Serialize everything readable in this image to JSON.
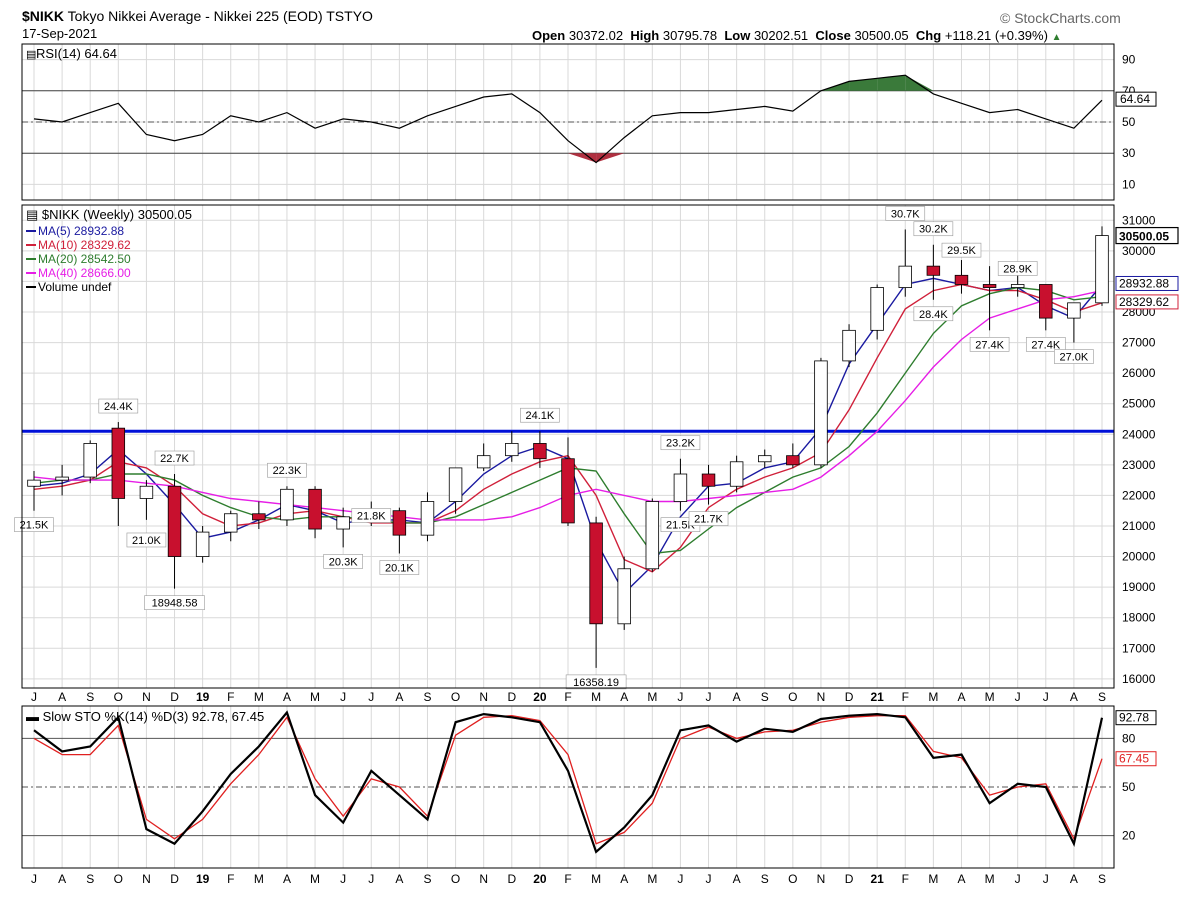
{
  "header": {
    "symbol": "$NIKK",
    "name": "Tokyo Nikkei Average - Nikkei 225 (EOD)",
    "exchange": "TSTYO",
    "date": "17-Sep-2021",
    "brand": "© StockCharts.com",
    "open_label": "Open",
    "open": "30372.02",
    "high_label": "High",
    "high": "30795.78",
    "low_label": "Low",
    "low": "30202.51",
    "close_label": "Close",
    "close": "30500.05",
    "chg_label": "Chg",
    "chg": "+118.21 (+0.39%)"
  },
  "colors": {
    "up": "#ffffff",
    "down": "#c8102e",
    "outline": "#000000",
    "ma5": "#1a1aa0",
    "ma10": "#d0203a",
    "ma20": "#2e7d2e",
    "ma40": "#e61ee6",
    "support": "#0010d8",
    "rsi_fill_up": "#3a7a3a",
    "rsi_fill_down": "#b03040",
    "sto_k": "#000000",
    "sto_d": "#e02020",
    "grid": "#d9d9d9"
  },
  "chart_data": [
    {
      "type": "line",
      "panel": "rsi",
      "title": "RSI(14) 64.64",
      "current": "64.64",
      "ylim": [
        0,
        100
      ],
      "yticks": [
        "90",
        "70",
        "50",
        "30",
        "10"
      ],
      "reference_lines": [
        70,
        50,
        30
      ],
      "x": [
        "2018-07",
        "2018-08",
        "2018-09",
        "2018-10",
        "2018-11",
        "2018-12",
        "2019-01",
        "2019-02",
        "2019-03",
        "2019-04",
        "2019-05",
        "2019-06",
        "2019-07",
        "2019-08",
        "2019-09",
        "2019-10",
        "2019-11",
        "2019-12",
        "2020-01",
        "2020-02",
        "2020-03",
        "2020-04",
        "2020-05",
        "2020-06",
        "2020-07",
        "2020-08",
        "2020-09",
        "2020-10",
        "2020-11",
        "2020-12",
        "2021-01",
        "2021-02",
        "2021-03",
        "2021-04",
        "2021-05",
        "2021-06",
        "2021-07",
        "2021-08",
        "2021-09"
      ],
      "series": [
        {
          "name": "RSI(14)",
          "values": [
            52,
            50,
            56,
            62,
            42,
            38,
            42,
            54,
            50,
            56,
            46,
            52,
            50,
            46,
            54,
            60,
            66,
            68,
            56,
            38,
            24,
            40,
            54,
            56,
            56,
            58,
            60,
            57,
            70,
            76,
            78,
            80,
            68,
            62,
            56,
            58,
            52,
            46,
            64
          ]
        }
      ]
    },
    {
      "type": "candlestick",
      "panel": "price",
      "title": "$NIKK (Weekly) 30500.05",
      "ylim": [
        15700,
        31500
      ],
      "yticks": [
        "31000",
        "30000",
        "29000",
        "28000",
        "27000",
        "26000",
        "25000",
        "24000",
        "23000",
        "22000",
        "21000",
        "20000",
        "19000",
        "18000",
        "17000",
        "16000"
      ],
      "xlabels": [
        "J",
        "A",
        "S",
        "O",
        "N",
        "D",
        "19",
        "F",
        "M",
        "A",
        "M",
        "J",
        "J",
        "A",
        "S",
        "O",
        "N",
        "D",
        "20",
        "F",
        "M",
        "A",
        "M",
        "J",
        "J",
        "A",
        "S",
        "O",
        "N",
        "D",
        "21",
        "F",
        "M",
        "A",
        "M",
        "J",
        "J",
        "A",
        "S"
      ],
      "last_price_label": "30500.05",
      "horizontal_line": 24100,
      "legend": [
        {
          "label": "MA(5) 28932.88",
          "color_key": "ma5"
        },
        {
          "label": "MA(10) 28329.62",
          "color_key": "ma10"
        },
        {
          "label": "MA(20) 28542.50",
          "color_key": "ma20"
        },
        {
          "label": "MA(40) 28666.00",
          "color_key": "ma40"
        },
        {
          "label": "Volume undef",
          "color_key": "outline"
        }
      ],
      "right_labels": [
        "28932.88",
        "28329.62"
      ],
      "annotations": [
        {
          "text": "21.5K",
          "x": "2018-07",
          "y": 21500
        },
        {
          "text": "24.4K",
          "x": "2018-10",
          "y": 24400
        },
        {
          "text": "21.0K",
          "x": "2018-11",
          "y": 21000
        },
        {
          "text": "22.7K",
          "x": "2018-12",
          "y": 22700
        },
        {
          "text": "18948.58",
          "x": "2018-12",
          "y": 18948.58
        },
        {
          "text": "22.3K",
          "x": "2019-04",
          "y": 22300
        },
        {
          "text": "20.3K",
          "x": "2019-06",
          "y": 20300
        },
        {
          "text": "21.8K",
          "x": "2019-07",
          "y": 21800
        },
        {
          "text": "20.1K",
          "x": "2019-08",
          "y": 20100
        },
        {
          "text": "24.1K",
          "x": "2020-01",
          "y": 24100
        },
        {
          "text": "16358.19",
          "x": "2020-03",
          "y": 16358.19
        },
        {
          "text": "23.2K",
          "x": "2020-06",
          "y": 23200
        },
        {
          "text": "21.5K",
          "x": "2020-06",
          "y": 21500
        },
        {
          "text": "21.7K",
          "x": "2020-07",
          "y": 21700
        },
        {
          "text": "30.7K",
          "x": "2021-02",
          "y": 30700
        },
        {
          "text": "30.2K",
          "x": "2021-03",
          "y": 30200
        },
        {
          "text": "28.4K",
          "x": "2021-03",
          "y": 28400
        },
        {
          "text": "29.5K",
          "x": "2021-04",
          "y": 29500
        },
        {
          "text": "27.4K",
          "x": "2021-05",
          "y": 27400
        },
        {
          "text": "28.9K",
          "x": "2021-06",
          "y": 28900
        },
        {
          "text": "27.4K",
          "x": "2021-07",
          "y": 27400
        },
        {
          "text": "27.0K",
          "x": "2021-08",
          "y": 27000
        }
      ],
      "x": [
        "2018-07",
        "2018-08",
        "2018-09",
        "2018-10",
        "2018-11",
        "2018-12",
        "2019-01",
        "2019-02",
        "2019-03",
        "2019-04",
        "2019-05",
        "2019-06",
        "2019-07",
        "2019-08",
        "2019-09",
        "2019-10",
        "2019-11",
        "2019-12",
        "2020-01",
        "2020-02",
        "2020-03",
        "2020-04",
        "2020-05",
        "2020-06",
        "2020-07",
        "2020-08",
        "2020-09",
        "2020-10",
        "2020-11",
        "2020-12",
        "2021-01",
        "2021-02",
        "2021-03",
        "2021-04",
        "2021-05",
        "2021-06",
        "2021-07",
        "2021-08",
        "2021-09"
      ],
      "candles": [
        {
          "o": 22300,
          "h": 22800,
          "l": 21500,
          "c": 22500
        },
        {
          "o": 22500,
          "h": 23000,
          "l": 22000,
          "c": 22600
        },
        {
          "o": 22600,
          "h": 23800,
          "l": 22400,
          "c": 23700
        },
        {
          "o": 24200,
          "h": 24400,
          "l": 21000,
          "c": 21900
        },
        {
          "o": 21900,
          "h": 22500,
          "l": 21200,
          "c": 22300
        },
        {
          "o": 22300,
          "h": 22700,
          "l": 18950,
          "c": 20000
        },
        {
          "o": 20000,
          "h": 21000,
          "l": 19800,
          "c": 20800
        },
        {
          "o": 20800,
          "h": 21500,
          "l": 20500,
          "c": 21400
        },
        {
          "o": 21400,
          "h": 21800,
          "l": 20900,
          "c": 21200
        },
        {
          "o": 21200,
          "h": 22300,
          "l": 21000,
          "c": 22200
        },
        {
          "o": 22200,
          "h": 22300,
          "l": 20600,
          "c": 20900
        },
        {
          "o": 20900,
          "h": 21600,
          "l": 20300,
          "c": 21300
        },
        {
          "o": 21300,
          "h": 21800,
          "l": 21000,
          "c": 21500
        },
        {
          "o": 21500,
          "h": 21600,
          "l": 20100,
          "c": 20700
        },
        {
          "o": 20700,
          "h": 22100,
          "l": 20500,
          "c": 21800
        },
        {
          "o": 21800,
          "h": 22900,
          "l": 21400,
          "c": 22900
        },
        {
          "o": 22900,
          "h": 23700,
          "l": 22800,
          "c": 23300
        },
        {
          "o": 23300,
          "h": 24100,
          "l": 23100,
          "c": 23700
        },
        {
          "o": 23700,
          "h": 24100,
          "l": 22900,
          "c": 23200
        },
        {
          "o": 23200,
          "h": 23900,
          "l": 21000,
          "c": 21100
        },
        {
          "o": 21100,
          "h": 21300,
          "l": 16358,
          "c": 17800
        },
        {
          "o": 17800,
          "h": 20000,
          "l": 17600,
          "c": 19600
        },
        {
          "o": 19600,
          "h": 21900,
          "l": 19500,
          "c": 21800
        },
        {
          "o": 21800,
          "h": 23200,
          "l": 21500,
          "c": 22700
        },
        {
          "o": 22700,
          "h": 23000,
          "l": 21700,
          "c": 22300
        },
        {
          "o": 22300,
          "h": 23300,
          "l": 22100,
          "c": 23100
        },
        {
          "o": 23100,
          "h": 23500,
          "l": 22900,
          "c": 23300
        },
        {
          "o": 23300,
          "h": 23700,
          "l": 22900,
          "c": 23000
        },
        {
          "o": 23000,
          "h": 26500,
          "l": 22900,
          "c": 26400
        },
        {
          "o": 26400,
          "h": 27600,
          "l": 26200,
          "c": 27400
        },
        {
          "o": 27400,
          "h": 28900,
          "l": 27100,
          "c": 28800
        },
        {
          "o": 28800,
          "h": 30700,
          "l": 28500,
          "c": 29500
        },
        {
          "o": 29500,
          "h": 30200,
          "l": 28400,
          "c": 29200
        },
        {
          "o": 29200,
          "h": 29700,
          "l": 28600,
          "c": 28900
        },
        {
          "o": 28900,
          "h": 29500,
          "l": 27400,
          "c": 28800
        },
        {
          "o": 28800,
          "h": 29500,
          "l": 28500,
          "c": 28900
        },
        {
          "o": 28900,
          "h": 28900,
          "l": 27400,
          "c": 27800
        },
        {
          "o": 27800,
          "h": 28200,
          "l": 27000,
          "c": 28300
        },
        {
          "o": 28300,
          "h": 30800,
          "l": 28200,
          "c": 30500
        }
      ],
      "ma_series": [
        {
          "name": "MA(5)",
          "color_key": "ma5",
          "values": [
            22300,
            22400,
            22700,
            23500,
            22700,
            21700,
            20600,
            20800,
            21200,
            21700,
            21500,
            21100,
            21200,
            21200,
            21100,
            21800,
            22700,
            23300,
            23600,
            23200,
            20500,
            18800,
            19700,
            21300,
            22300,
            22400,
            22900,
            23100,
            24200,
            26300,
            27600,
            28900,
            29100,
            28900,
            28700,
            28800,
            28200,
            27800,
            28900
          ]
        },
        {
          "name": "MA(10)",
          "color_key": "ma10",
          "values": [
            22200,
            22300,
            22500,
            23100,
            22900,
            22300,
            21400,
            21000,
            21100,
            21400,
            21500,
            21300,
            21100,
            21100,
            21100,
            21500,
            22200,
            22700,
            23100,
            23300,
            22000,
            19900,
            19500,
            20300,
            21600,
            22200,
            22600,
            22900,
            23400,
            24800,
            26500,
            28100,
            28700,
            28900,
            28700,
            28700,
            28400,
            28000,
            28300
          ]
        },
        {
          "name": "MA(20)",
          "color_key": "ma20",
          "values": [
            22400,
            22500,
            22500,
            22700,
            22700,
            22500,
            22000,
            21600,
            21300,
            21200,
            21300,
            21300,
            21200,
            21100,
            21100,
            21300,
            21700,
            22100,
            22500,
            22900,
            22800,
            21400,
            20100,
            20200,
            20900,
            21600,
            22100,
            22600,
            22900,
            23600,
            24700,
            26000,
            27300,
            28200,
            28600,
            28800,
            28700,
            28400,
            28500
          ]
        },
        {
          "name": "MA(40)",
          "color_key": "ma40",
          "values": [
            22600,
            22500,
            22500,
            22500,
            22400,
            22300,
            22100,
            21900,
            21800,
            21700,
            21600,
            21500,
            21400,
            21300,
            21200,
            21200,
            21200,
            21300,
            21600,
            22000,
            22200,
            22000,
            21800,
            21800,
            21900,
            22000,
            22100,
            22200,
            22600,
            23300,
            24100,
            25100,
            26200,
            27100,
            27800,
            28100,
            28400,
            28500,
            28700
          ]
        }
      ]
    },
    {
      "type": "line",
      "panel": "stochastic",
      "title": "Slow STO %K(14) %D(3) 92.78, 67.45",
      "ylim": [
        0,
        100
      ],
      "yticks": [
        "80",
        "50",
        "20"
      ],
      "reference_lines": [
        80,
        50,
        20
      ],
      "right_labels": [
        "92.78",
        "67.45"
      ],
      "x": [
        "2018-07",
        "2018-08",
        "2018-09",
        "2018-10",
        "2018-11",
        "2018-12",
        "2019-01",
        "2019-02",
        "2019-03",
        "2019-04",
        "2019-05",
        "2019-06",
        "2019-07",
        "2019-08",
        "2019-09",
        "2019-10",
        "2019-11",
        "2019-12",
        "2020-01",
        "2020-02",
        "2020-03",
        "2020-04",
        "2020-05",
        "2020-06",
        "2020-07",
        "2020-08",
        "2020-09",
        "2020-10",
        "2020-11",
        "2020-12",
        "2021-01",
        "2021-02",
        "2021-03",
        "2021-04",
        "2021-05",
        "2021-06",
        "2021-07",
        "2021-08",
        "2021-09"
      ],
      "series": [
        {
          "name": "%K",
          "values": [
            85,
            72,
            75,
            93,
            24,
            15,
            35,
            58,
            75,
            96,
            45,
            28,
            60,
            45,
            30,
            90,
            95,
            93,
            90,
            60,
            10,
            25,
            45,
            85,
            88,
            78,
            86,
            84,
            92,
            94,
            95,
            93,
            68,
            70,
            40,
            52,
            50,
            15,
            92.78
          ]
        },
        {
          "name": "%D",
          "values": [
            80,
            70,
            70,
            88,
            30,
            18,
            30,
            52,
            70,
            93,
            55,
            32,
            55,
            50,
            32,
            82,
            93,
            94,
            91,
            70,
            15,
            22,
            40,
            80,
            87,
            80,
            84,
            85,
            90,
            93,
            94,
            94,
            72,
            68,
            45,
            50,
            52,
            18,
            67.45
          ]
        }
      ]
    }
  ]
}
